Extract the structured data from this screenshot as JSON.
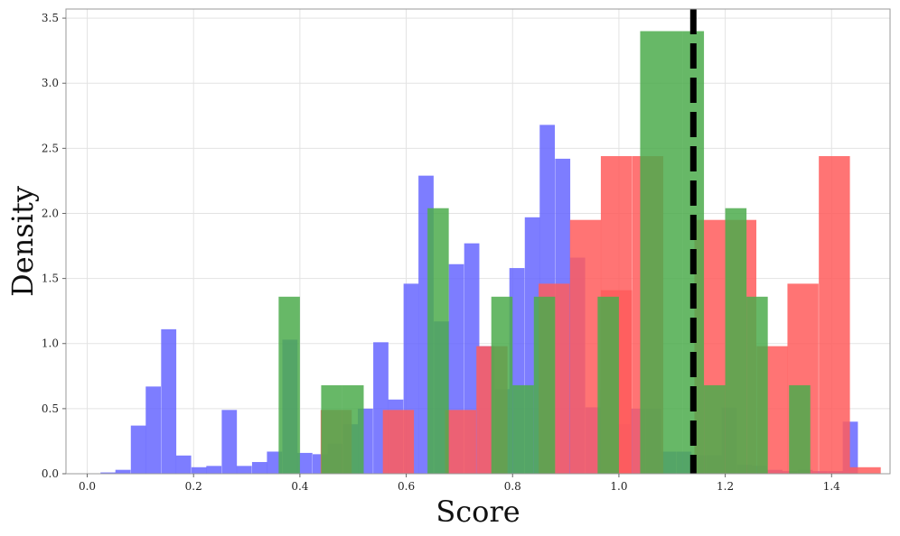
{
  "chart_data": {
    "type": "histogram",
    "xlabel": "Score",
    "ylabel": "Density",
    "xlim": [
      -0.04,
      1.51
    ],
    "ylim": [
      0,
      3.57
    ],
    "x_ticks": [
      0.0,
      0.2,
      0.4,
      0.6,
      0.8,
      1.0,
      1.2,
      1.4
    ],
    "x_tick_labels": [
      "0.0",
      "0.2",
      "0.4",
      "0.6",
      "0.8",
      "1.0",
      "1.2",
      "1.4"
    ],
    "y_ticks": [
      0.0,
      0.5,
      1.0,
      1.5,
      2.0,
      2.5,
      3.0,
      3.5
    ],
    "y_tick_labels": [
      "0.0",
      "0.5",
      "1.0",
      "1.5",
      "2.0",
      "2.5",
      "3.0",
      "3.5"
    ],
    "grid": true,
    "vline": {
      "x": 1.14,
      "style": "dashed",
      "color": "#000000"
    },
    "series": [
      {
        "color": "#6666ff",
        "bin_width": 0.0285,
        "bins": [
          [
            0.025,
            0.01
          ],
          [
            0.053,
            0.03
          ],
          [
            0.082,
            0.37
          ],
          [
            0.11,
            0.67
          ],
          [
            0.139,
            1.11
          ],
          [
            0.167,
            0.14
          ],
          [
            0.196,
            0.05
          ],
          [
            0.224,
            0.06
          ],
          [
            0.253,
            0.49
          ],
          [
            0.281,
            0.06
          ],
          [
            0.31,
            0.09
          ],
          [
            0.338,
            0.17
          ],
          [
            0.367,
            1.03
          ],
          [
            0.395,
            0.16
          ],
          [
            0.424,
            0.15
          ],
          [
            0.452,
            0.23
          ],
          [
            0.481,
            0.38
          ],
          [
            0.509,
            0.5
          ],
          [
            0.538,
            1.01
          ],
          [
            0.566,
            0.57
          ],
          [
            0.595,
            1.46
          ],
          [
            0.623,
            2.29
          ],
          [
            0.652,
            1.17
          ],
          [
            0.68,
            1.61
          ],
          [
            0.709,
            1.77
          ],
          [
            0.737,
            0.98
          ],
          [
            0.766,
            0.65
          ],
          [
            0.794,
            1.58
          ],
          [
            0.823,
            1.97
          ],
          [
            0.851,
            2.68
          ],
          [
            0.88,
            2.42
          ],
          [
            0.908,
            1.66
          ],
          [
            0.937,
            0.51
          ],
          [
            0.965,
            0.65
          ],
          [
            0.994,
            0.38
          ],
          [
            1.022,
            0.5
          ],
          [
            1.051,
            0.5
          ],
          [
            1.079,
            0.17
          ],
          [
            1.108,
            0.17
          ],
          [
            1.136,
            0.14
          ],
          [
            1.165,
            0.14
          ],
          [
            1.193,
            0.51
          ],
          [
            1.222,
            0.07
          ],
          [
            1.25,
            0.06
          ],
          [
            1.279,
            0.03
          ],
          [
            1.307,
            0.02
          ],
          [
            1.336,
            0.03
          ],
          [
            1.364,
            0.02
          ],
          [
            1.393,
            0.02
          ],
          [
            1.421,
            0.4
          ]
        ]
      },
      {
        "color": "#ff5c5c",
        "bin_width": 0.0585,
        "bins": [
          [
            0.439,
            0.49
          ],
          [
            0.556,
            0.49
          ],
          [
            0.673,
            0.49
          ],
          [
            0.732,
            0.98
          ],
          [
            0.849,
            1.46
          ],
          [
            0.908,
            1.95
          ],
          [
            0.966,
            1.41
          ],
          [
            0.966,
            2.44
          ],
          [
            1.025,
            2.44
          ],
          [
            1.142,
            1.95
          ],
          [
            1.2,
            1.95
          ],
          [
            1.259,
            0.98
          ],
          [
            1.317,
            1.46
          ],
          [
            1.376,
            2.44
          ],
          [
            1.434,
            0.05
          ]
        ]
      },
      {
        "color": "#4cab4c",
        "bin_width": 0.04,
        "bins": [
          [
            0.36,
            1.36
          ],
          [
            0.44,
            0.68
          ],
          [
            0.48,
            0.68
          ],
          [
            0.64,
            2.04
          ],
          [
            0.76,
            1.36
          ],
          [
            0.8,
            0.68
          ],
          [
            0.84,
            1.36
          ],
          [
            0.96,
            1.36
          ],
          [
            1.04,
            3.4
          ],
          [
            1.08,
            3.4
          ],
          [
            1.12,
            3.4
          ],
          [
            1.16,
            0.68
          ],
          [
            1.2,
            2.04
          ],
          [
            1.24,
            1.36
          ],
          [
            1.32,
            0.68
          ]
        ]
      }
    ]
  }
}
